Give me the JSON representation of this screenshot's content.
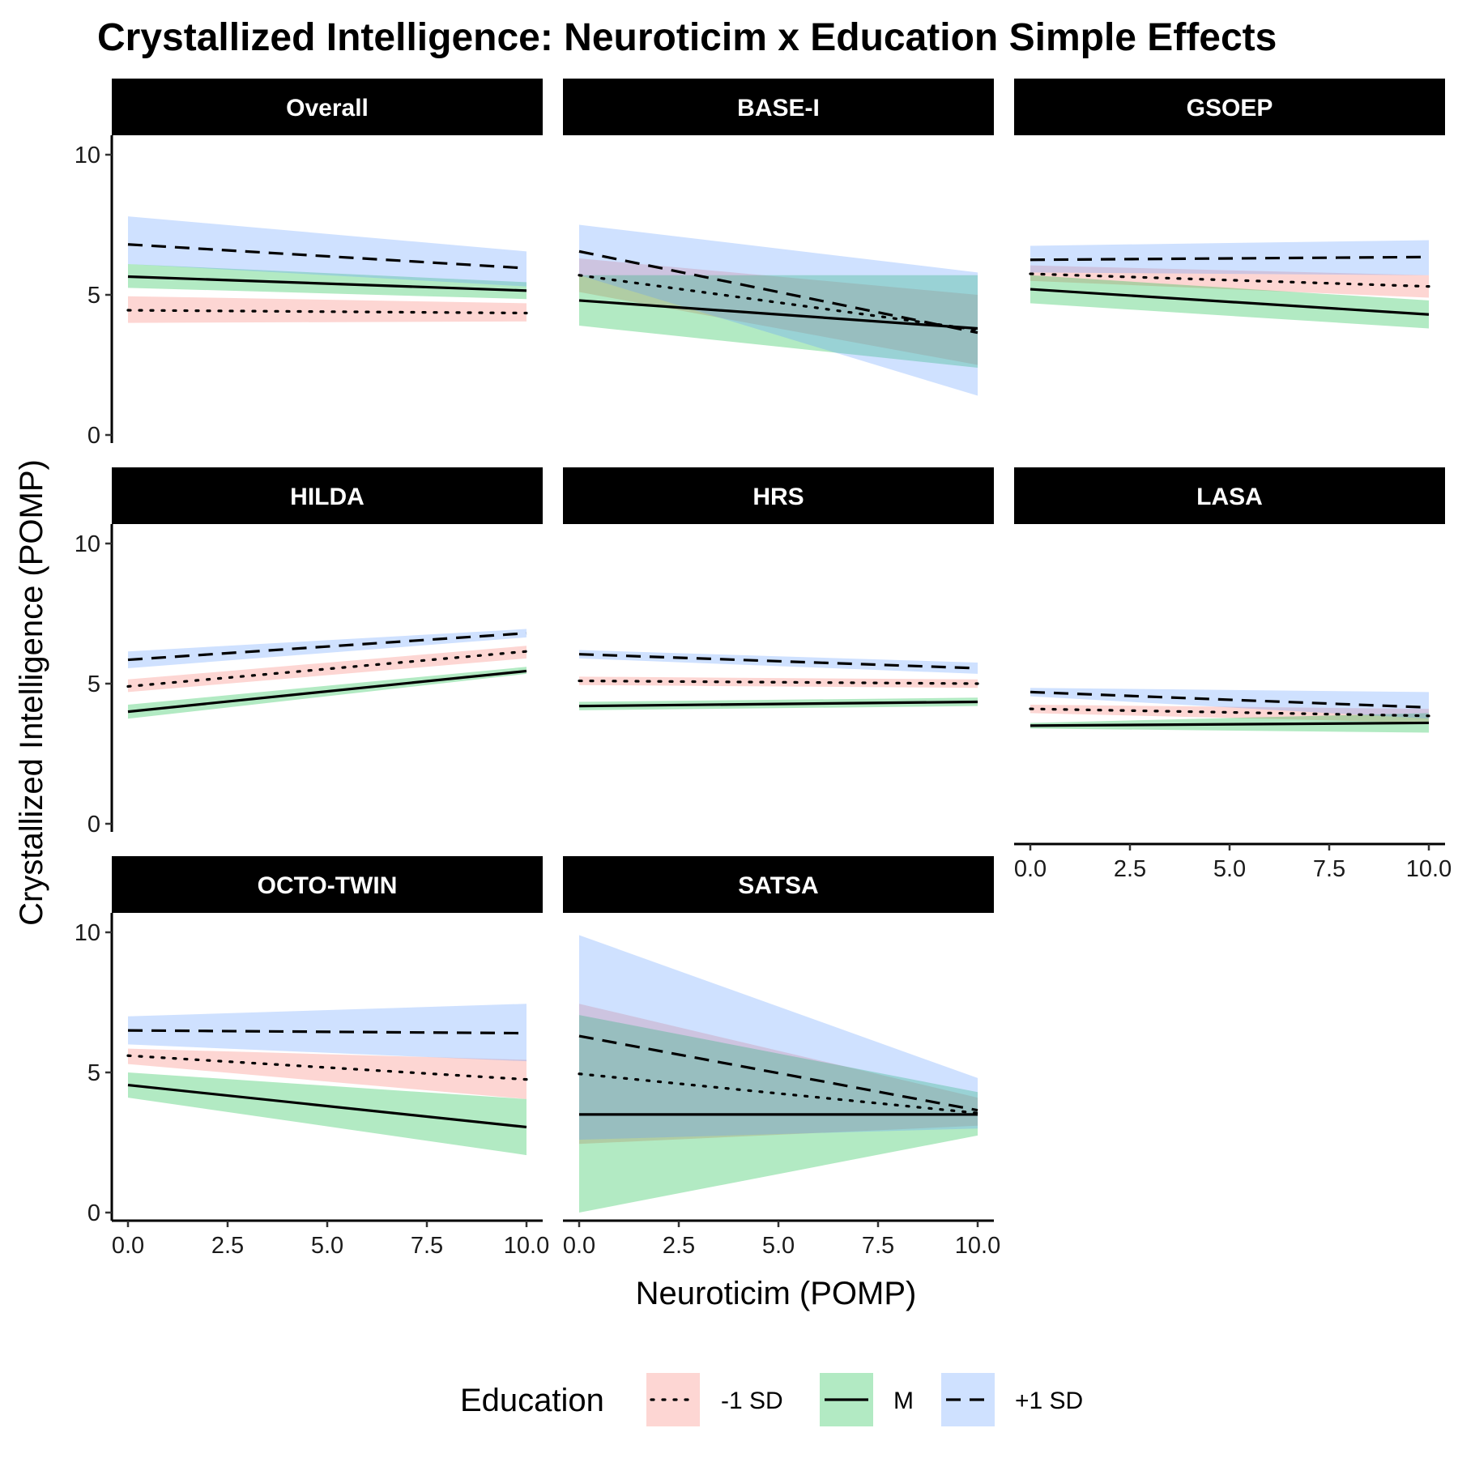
{
  "chart_data": {
    "type": "line",
    "title": "Crystallized Intelligence: Neuroticim x Education Simple Effects",
    "xlabel": "Neuroticim (POMP)",
    "ylabel": "Crystallized Intelligence (POMP)",
    "xlim": [
      0,
      10
    ],
    "ylim": [
      0,
      10
    ],
    "x_ticks": [
      "0.0",
      "2.5",
      "5.0",
      "7.5",
      "10.0"
    ],
    "y_ticks": [
      "0",
      "5",
      "10"
    ],
    "grid": false,
    "legend": {
      "title": "Education",
      "position": "bottom",
      "entries": [
        {
          "label": "-1 SD",
          "linetype": "dotted",
          "fill": "#F8766D"
        },
        {
          "label": "M",
          "linetype": "solid",
          "fill": "#00BA38"
        },
        {
          "label": "+1 SD",
          "linetype": "dashed",
          "fill": "#619CFF"
        }
      ]
    },
    "x": [
      0,
      10
    ],
    "panels": [
      {
        "name": "Overall",
        "series": [
          {
            "name": "-1 SD",
            "values": [
              4.45,
              4.35
            ],
            "lower": [
              4.0,
              4.05
            ],
            "upper": [
              4.95,
              4.7
            ]
          },
          {
            "name": "M",
            "values": [
              5.65,
              5.15
            ],
            "lower": [
              5.25,
              4.85
            ],
            "upper": [
              6.1,
              5.45
            ]
          },
          {
            "name": "+1 SD",
            "values": [
              6.8,
              5.95
            ],
            "lower": [
              6.1,
              5.3
            ],
            "upper": [
              7.8,
              6.55
            ]
          }
        ]
      },
      {
        "name": "BASE-I",
        "series": [
          {
            "name": "-1 SD",
            "values": [
              5.7,
              3.75
            ],
            "lower": [
              5.1,
              2.5
            ],
            "upper": [
              6.3,
              5.0
            ]
          },
          {
            "name": "M",
            "values": [
              4.8,
              3.8
            ],
            "lower": [
              3.9,
              2.4
            ],
            "upper": [
              5.7,
              5.7
            ]
          },
          {
            "name": "+1 SD",
            "values": [
              6.55,
              3.65
            ],
            "lower": [
              5.7,
              1.4
            ],
            "upper": [
              7.5,
              5.8
            ]
          }
        ]
      },
      {
        "name": "GSOEP",
        "series": [
          {
            "name": "-1 SD",
            "values": [
              5.75,
              5.3
            ],
            "lower": [
              5.5,
              4.9
            ],
            "upper": [
              6.05,
              5.7
            ]
          },
          {
            "name": "M",
            "values": [
              5.2,
              4.3
            ],
            "lower": [
              4.7,
              3.8
            ],
            "upper": [
              5.7,
              4.8
            ]
          },
          {
            "name": "+1 SD",
            "values": [
              6.25,
              6.35
            ],
            "lower": [
              5.8,
              5.7
            ],
            "upper": [
              6.75,
              6.95
            ]
          }
        ]
      },
      {
        "name": "HILDA",
        "series": [
          {
            "name": "-1 SD",
            "values": [
              4.9,
              6.15
            ],
            "lower": [
              4.7,
              5.9
            ],
            "upper": [
              5.15,
              6.35
            ]
          },
          {
            "name": "M",
            "values": [
              4.0,
              5.45
            ],
            "lower": [
              3.75,
              5.35
            ],
            "upper": [
              4.25,
              5.6
            ]
          },
          {
            "name": "+1 SD",
            "values": [
              5.85,
              6.8
            ],
            "lower": [
              5.55,
              6.65
            ],
            "upper": [
              6.15,
              6.95
            ]
          }
        ]
      },
      {
        "name": "HRS",
        "series": [
          {
            "name": "-1 SD",
            "values": [
              5.1,
              5.0
            ],
            "lower": [
              4.95,
              4.85
            ],
            "upper": [
              5.25,
              5.15
            ]
          },
          {
            "name": "M",
            "values": [
              4.2,
              4.35
            ],
            "lower": [
              4.05,
              4.2
            ],
            "upper": [
              4.35,
              4.5
            ]
          },
          {
            "name": "+1 SD",
            "values": [
              6.05,
              5.55
            ],
            "lower": [
              5.9,
              5.35
            ],
            "upper": [
              6.2,
              5.75
            ]
          }
        ]
      },
      {
        "name": "LASA",
        "series": [
          {
            "name": "-1 SD",
            "values": [
              4.1,
              3.85
            ],
            "lower": [
              3.95,
              3.6
            ],
            "upper": [
              4.25,
              4.1
            ]
          },
          {
            "name": "M",
            "values": [
              3.5,
              3.6
            ],
            "lower": [
              3.4,
              3.25
            ],
            "upper": [
              3.6,
              3.95
            ]
          },
          {
            "name": "+1 SD",
            "values": [
              4.7,
              4.15
            ],
            "lower": [
              4.55,
              3.75
            ],
            "upper": [
              4.85,
              4.7
            ]
          }
        ]
      },
      {
        "name": "OCTO-TWIN",
        "series": [
          {
            "name": "-1 SD",
            "values": [
              5.6,
              4.75
            ],
            "lower": [
              5.3,
              4.05
            ],
            "upper": [
              5.85,
              5.45
            ]
          },
          {
            "name": "M",
            "values": [
              4.55,
              3.05
            ],
            "lower": [
              4.1,
              2.05
            ],
            "upper": [
              5.0,
              4.05
            ]
          },
          {
            "name": "+1 SD",
            "values": [
              6.5,
              6.4
            ],
            "lower": [
              6.0,
              5.4
            ],
            "upper": [
              7.0,
              7.45
            ]
          }
        ]
      },
      {
        "name": "SATSA",
        "series": [
          {
            "name": "-1 SD",
            "values": [
              4.95,
              3.55
            ],
            "lower": [
              2.45,
              3.1
            ],
            "upper": [
              7.45,
              4.1
            ]
          },
          {
            "name": "M",
            "values": [
              3.5,
              3.5
            ],
            "lower": [
              0.0,
              2.75
            ],
            "upper": [
              7.05,
              4.3
            ]
          },
          {
            "name": "+1 SD",
            "values": [
              6.3,
              3.65
            ],
            "lower": [
              2.6,
              3.0
            ],
            "upper": [
              9.9,
              4.8
            ]
          }
        ]
      }
    ]
  }
}
